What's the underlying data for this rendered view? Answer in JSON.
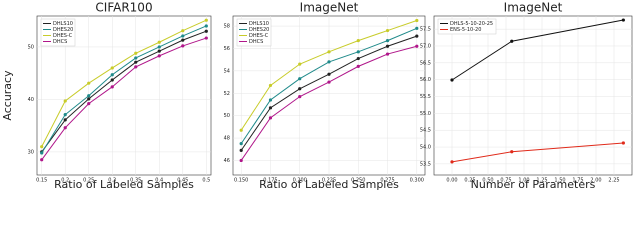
{
  "chart_data": [
    {
      "type": "line",
      "title": "CIFAR100",
      "xlabel": "Ratio of Labeled Samples",
      "ylabel": "Accuracy",
      "x": [
        0.15,
        0.2,
        0.25,
        0.3,
        0.35,
        0.4,
        0.45,
        0.5
      ],
      "series": [
        {
          "name": "DHLS10",
          "color": "#222222",
          "values": [
            30,
            36.1,
            40.1,
            43.7,
            47.1,
            49.2,
            51.3,
            53
          ]
        },
        {
          "name": "DHES20",
          "color": "#1f8a8a",
          "values": [
            29.8,
            37.1,
            40.7,
            44.7,
            47.9,
            50,
            52.1,
            54
          ]
        },
        {
          "name": "DHES-C",
          "color": "#c8cc2a",
          "values": [
            31,
            39.7,
            43.1,
            46,
            48.8,
            50.9,
            53.1,
            55.1
          ]
        },
        {
          "name": "DHCS",
          "color": "#b0168a",
          "values": [
            28.5,
            34.6,
            39.2,
            42.4,
            46.2,
            48.3,
            50.2,
            51.7
          ]
        }
      ],
      "xlim": [
        0.14,
        0.51
      ],
      "ylim": [
        25.6,
        55.9
      ],
      "xticks": [
        0.15,
        0.2,
        0.25,
        0.3,
        0.35,
        0.4,
        0.45,
        0.5
      ],
      "yticks": [
        30,
        40,
        50
      ],
      "legend": "upper left"
    },
    {
      "type": "line",
      "title": "ImageNet",
      "xlabel": "Ratio of Labeled Samples",
      "x": [
        0.15,
        0.175,
        0.2,
        0.225,
        0.25,
        0.275,
        0.3
      ],
      "series": [
        {
          "name": "DHLS10",
          "color": "#222222",
          "values": [
            46.9,
            50.7,
            52.4,
            53.7,
            55.1,
            56.2,
            57.1
          ]
        },
        {
          "name": "DHES20",
          "color": "#1f8a8a",
          "values": [
            47.5,
            51.4,
            53.3,
            54.8,
            55.7,
            56.7,
            57.8
          ]
        },
        {
          "name": "DHES-C",
          "color": "#c8cc2a",
          "values": [
            48.7,
            52.7,
            54.6,
            55.7,
            56.7,
            57.6,
            58.5
          ]
        },
        {
          "name": "DHCS",
          "color": "#b0168a",
          "values": [
            46,
            49.8,
            51.7,
            53,
            54.4,
            55.5,
            56.2
          ]
        }
      ],
      "xlim": [
        0.143,
        0.307
      ],
      "ylim": [
        44.7,
        58.9
      ],
      "xticks": [
        {
          "value": 0.15,
          "label": "0.150"
        },
        {
          "value": 0.175,
          "label": "0.175"
        },
        {
          "value": 0.2,
          "label": "0.200"
        },
        {
          "value": 0.225,
          "label": "0.225"
        },
        {
          "value": 0.25,
          "label": "0.250"
        },
        {
          "value": 0.275,
          "label": "0.275"
        },
        {
          "value": 0.3,
          "label": "0.300"
        }
      ],
      "yticks": [
        46,
        48,
        50,
        52,
        54,
        56,
        58
      ],
      "legend": "upper left"
    },
    {
      "type": "line",
      "title": "ImageNet",
      "xlabel": "Number of Parameters",
      "x": [
        0,
        0.83,
        2.38
      ],
      "series": [
        {
          "name": "DHLS-5-10-20-25",
          "color": "#111111",
          "values": [
            55.99,
            57.14,
            57.77
          ]
        },
        {
          "name": "ENS-5-10-20",
          "color": "#e02a1a",
          "values": [
            53.56,
            53.86,
            54.12
          ]
        }
      ],
      "xlim": [
        -0.25,
        2.5
      ],
      "ylim": [
        53.17,
        57.89
      ],
      "xticks": [
        {
          "value": 0,
          "label": "0.00"
        },
        0.25,
        {
          "value": 0.5,
          "label": "0.50"
        },
        0.75,
        {
          "value": 1,
          "label": "1.00"
        },
        1.25,
        {
          "value": 1.5,
          "label": "1.50"
        },
        1.75,
        {
          "value": 2,
          "label": "2.00"
        },
        2.25
      ],
      "yticks": [
        53.5,
        {
          "value": 54,
          "label": "54.0"
        },
        54.5,
        {
          "value": 55,
          "label": "55.0"
        },
        55.5,
        {
          "value": 56,
          "label": "56.0"
        },
        56.5,
        {
          "value": 57,
          "label": "57.0"
        },
        57.5
      ],
      "legend": "upper left"
    }
  ]
}
